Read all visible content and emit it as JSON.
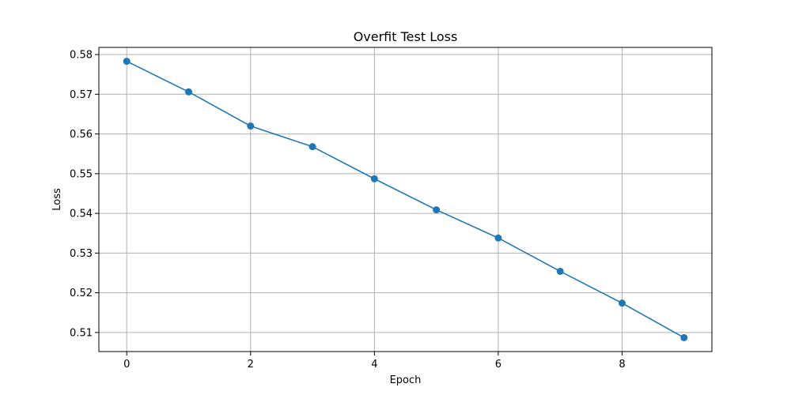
{
  "chart_data": {
    "type": "line",
    "title": "Overfit Test Loss",
    "xlabel": "Epoch",
    "ylabel": "Loss",
    "x": [
      0,
      1,
      2,
      3,
      4,
      5,
      6,
      7,
      8,
      9
    ],
    "series": [
      {
        "values": [
          0.5783,
          0.5706,
          0.562,
          0.5568,
          0.5487,
          0.5409,
          0.5338,
          0.5254,
          0.5174,
          0.5087
        ],
        "color": "#1f77b4",
        "marker": "circle"
      }
    ],
    "xlim": [
      -0.45,
      9.45
    ],
    "ylim": [
      0.5052,
      0.5818
    ],
    "xticks": [
      0,
      2,
      4,
      6,
      8
    ],
    "xtick_labels": [
      "0",
      "2",
      "4",
      "6",
      "8"
    ],
    "yticks": [
      0.51,
      0.52,
      0.53,
      0.54,
      0.55,
      0.56,
      0.57,
      0.58
    ],
    "ytick_labels": [
      "0.51",
      "0.52",
      "0.53",
      "0.54",
      "0.55",
      "0.56",
      "0.57",
      "0.58"
    ],
    "grid": true,
    "grid_color": "#b0b0b0",
    "legend": "none"
  }
}
